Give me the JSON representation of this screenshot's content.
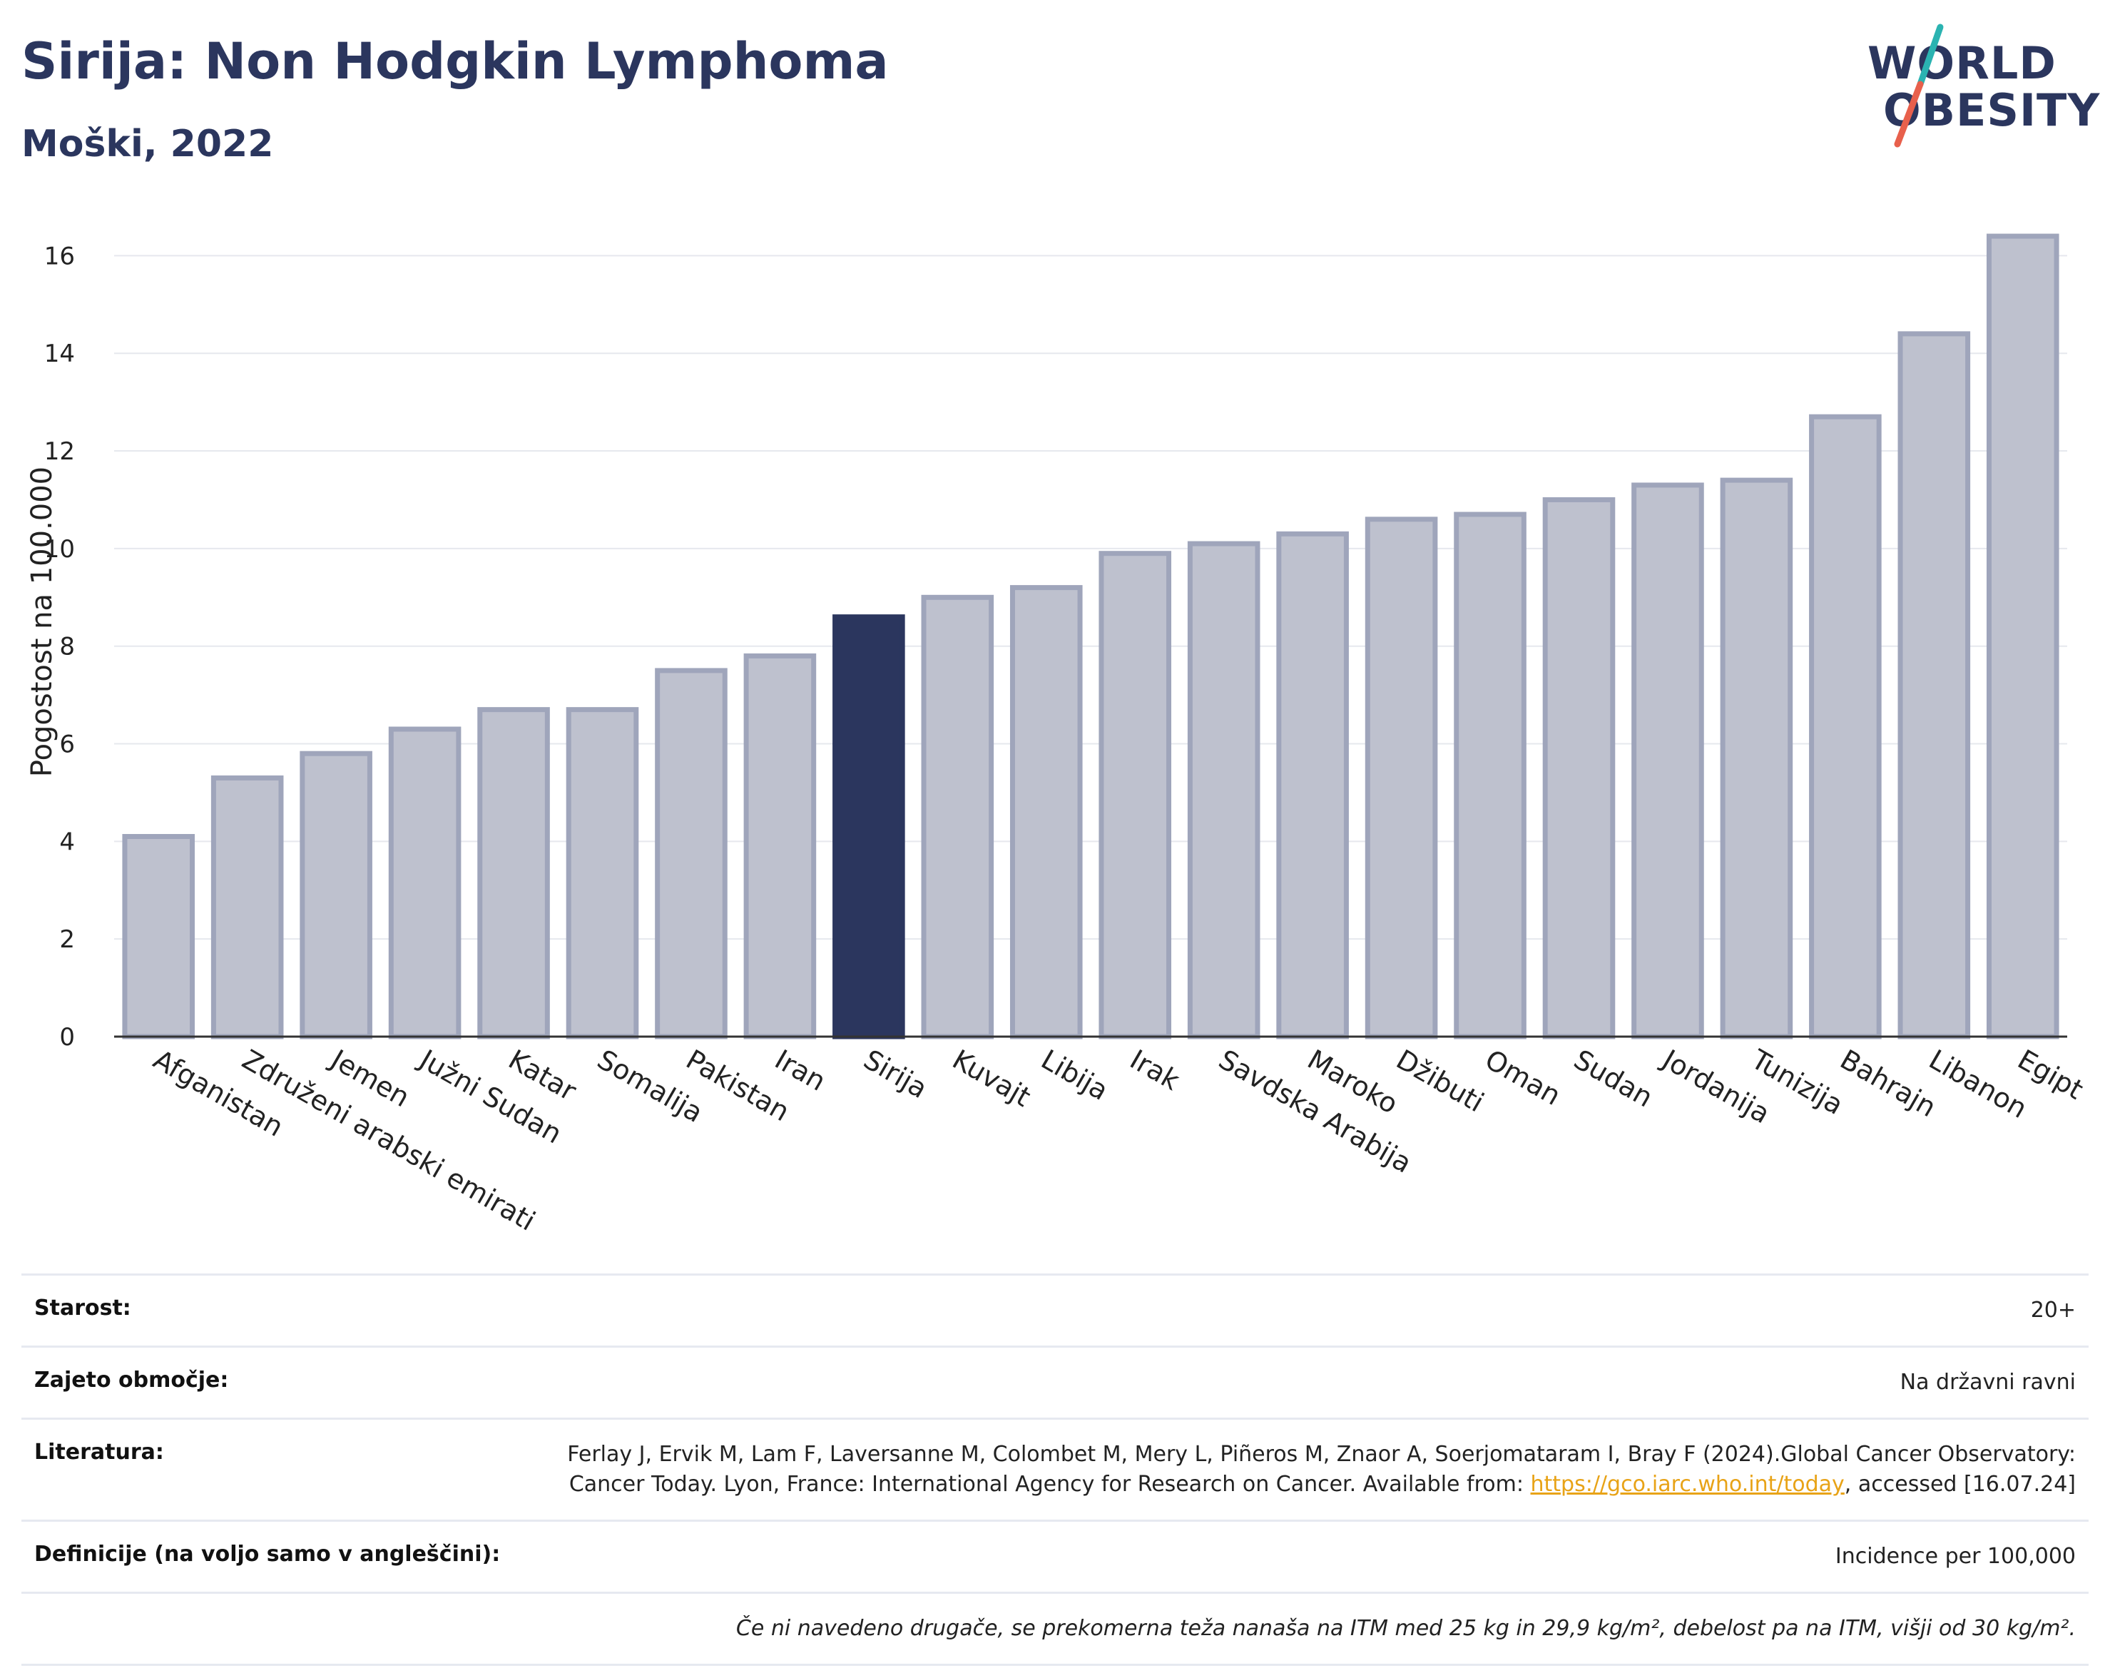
{
  "header": {
    "title": "Sirija: Non Hodgkin Lymphoma",
    "subtitle": "Moški, 2022"
  },
  "logo": {
    "line1": "WORLD",
    "line2": "OBESITY",
    "colors": {
      "text": "#2b365e",
      "slash_top": "#2bb3b1",
      "slash_bottom": "#e8604c"
    }
  },
  "chart_data": {
    "type": "bar",
    "ylabel": "Pogostost na 100.000",
    "ylim": [
      0,
      17
    ],
    "yticks": [
      0,
      2,
      4,
      6,
      8,
      10,
      12,
      14,
      16
    ],
    "grid": true,
    "highlight": "Sirija",
    "colors": {
      "bar": "#bec1ce",
      "bar_border": "#9fa5bb",
      "highlight": "#2b365e"
    },
    "categories": [
      "Afganistan",
      "Združeni arabski emirati",
      "Jemen",
      "Južni Sudan",
      "Katar",
      "Somalija",
      "Pakistan",
      "Iran",
      "Sirija",
      "Kuvajt",
      "Libija",
      "Irak",
      "Savdska Arabija",
      "Maroko",
      "Džibuti",
      "Oman",
      "Sudan",
      "Jordanija",
      "Tunizija",
      "Bahrajn",
      "Libanon",
      "Egipt"
    ],
    "values": [
      4.1,
      5.3,
      5.8,
      6.3,
      6.7,
      6.7,
      7.5,
      7.8,
      8.6,
      9.0,
      9.2,
      9.9,
      10.1,
      10.3,
      10.6,
      10.7,
      11.0,
      11.3,
      11.4,
      12.7,
      14.4,
      16.4
    ]
  },
  "info": {
    "age_label": "Starost:",
    "age_value": "20+",
    "coverage_label": "Zajeto območje:",
    "coverage_value": "Na državni ravni",
    "literature_label": "Literatura:",
    "literature_text1": "Ferlay J, Ervik M, Lam F, Laversanne M, Colombet M, Mery L, Piñeros M, Znaor A, Soerjomataram I, Bray F (2024).Global Cancer Observatory: Cancer Today. Lyon, France: International Agency for Research on Cancer. Available from: ",
    "literature_link": "https://gco.iarc.who.int/today",
    "literature_text2": ", accessed [16.07.24]",
    "definitions_label": "Definicije (na voljo samo v angleščini):",
    "definitions_value": "Incidence per 100,000",
    "note": "Če ni navedeno drugače, se prekomerna teža nanaša na ITM med 25 kg in 29,9 kg/m², debelost pa na ITM, višji od 30 kg/m²."
  }
}
